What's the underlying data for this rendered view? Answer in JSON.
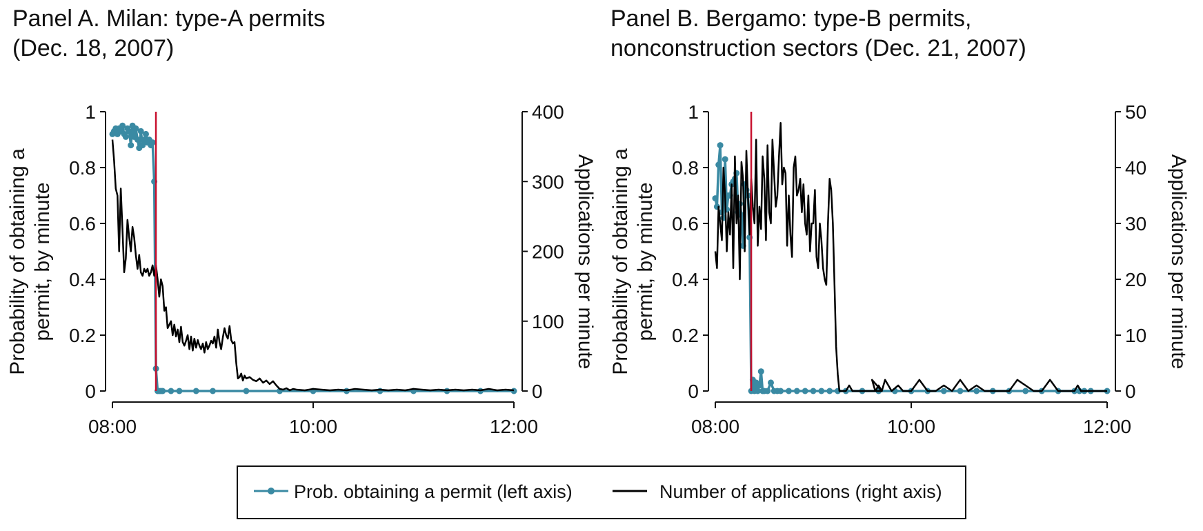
{
  "colors": {
    "probability": "#3a8aa3",
    "applications": "#000000",
    "event_line": "#c8102e"
  },
  "legend": {
    "prob_label": "Prob. obtaining a permit (left axis)",
    "apps_label": "Number of applications (right axis)"
  },
  "chart_data": [
    {
      "type": "line",
      "title_line1": "Panel A. Milan: type-A permits",
      "title_line2": "(Dec. 18, 2007)",
      "ylabel_left_line1": "Probability of obtaining a",
      "ylabel_left_line2": "permit, by minute",
      "ylabel_right": "Applications per minute",
      "x_ticks": [
        "08:00",
        "10:00",
        "12:00"
      ],
      "x_tick_minutes": [
        0,
        120,
        240
      ],
      "xlim_minutes": [
        0,
        240
      ],
      "y_left_ticks": [
        "0",
        "0.2",
        "0.4",
        "0.6",
        "0.8",
        "1"
      ],
      "y_left_tick_values": [
        0,
        0.2,
        0.4,
        0.6,
        0.8,
        1
      ],
      "ylim_left": [
        0,
        1
      ],
      "y_right_ticks": [
        "0",
        "100",
        "200",
        "300",
        "400"
      ],
      "y_right_tick_values": [
        0,
        100,
        200,
        300,
        400
      ],
      "ylim_right": [
        0,
        400
      ],
      "event_line_minute": 26,
      "series": [
        {
          "name": "Prob. obtaining a permit (left axis)",
          "axis": "left",
          "x": [
            0,
            1,
            2,
            3,
            4,
            5,
            6,
            7,
            8,
            9,
            10,
            11,
            12,
            13,
            14,
            15,
            16,
            17,
            18,
            19,
            20,
            21,
            22,
            23,
            24,
            25,
            26,
            27,
            28,
            29,
            30,
            35,
            40,
            50,
            60,
            80,
            100,
            120,
            140,
            160,
            180,
            200,
            220,
            240
          ],
          "y": [
            0.92,
            0.93,
            0.94,
            0.92,
            0.94,
            0.93,
            0.95,
            0.92,
            0.91,
            0.94,
            0.93,
            0.88,
            0.95,
            0.91,
            0.94,
            0.9,
            0.87,
            0.93,
            0.88,
            0.9,
            0.92,
            0.89,
            0.9,
            0.88,
            0.89,
            0.75,
            0.08,
            0.0,
            0.0,
            0.0,
            0.0,
            0.0,
            0.0,
            0.0,
            0.0,
            0.0,
            0.0,
            0.0,
            0.0,
            0.0,
            0.0,
            0.0,
            0.0,
            0.0
          ]
        },
        {
          "name": "Number of applications (right axis)",
          "axis": "right",
          "x": [
            0,
            1,
            2,
            3,
            4,
            5,
            6,
            7,
            8,
            9,
            10,
            11,
            12,
            13,
            14,
            15,
            16,
            17,
            18,
            19,
            20,
            21,
            22,
            23,
            24,
            25,
            26,
            27,
            28,
            29,
            30,
            31,
            32,
            33,
            34,
            35,
            36,
            37,
            38,
            39,
            40,
            41,
            42,
            43,
            44,
            45,
            46,
            47,
            48,
            49,
            50,
            51,
            52,
            53,
            54,
            55,
            56,
            57,
            58,
            59,
            60,
            61,
            62,
            63,
            64,
            65,
            66,
            67,
            68,
            69,
            70,
            71,
            72,
            73,
            74,
            75,
            76,
            77,
            78,
            79,
            80,
            82,
            84,
            86,
            88,
            90,
            92,
            94,
            96,
            98,
            100,
            102,
            104,
            106,
            108,
            110,
            115,
            120,
            125,
            130,
            135,
            140,
            145,
            150,
            155,
            160,
            165,
            170,
            175,
            180,
            185,
            190,
            195,
            200,
            205,
            210,
            215,
            220,
            225,
            230,
            235,
            240
          ],
          "y": [
            360,
            330,
            290,
            280,
            200,
            290,
            230,
            170,
            190,
            245,
            220,
            200,
            235,
            220,
            195,
            175,
            195,
            170,
            165,
            175,
            170,
            175,
            165,
            170,
            180,
            165,
            180,
            160,
            135,
            160,
            150,
            115,
            120,
            90,
            95,
            100,
            80,
            95,
            78,
            88,
            70,
            92,
            70,
            65,
            72,
            80,
            60,
            78,
            58,
            75,
            62,
            73,
            65,
            60,
            68,
            55,
            70,
            60,
            65,
            72,
            68,
            78,
            62,
            88,
            70,
            60,
            77,
            90,
            80,
            75,
            93,
            73,
            68,
            70,
            40,
            18,
            20,
            25,
            15,
            22,
            18,
            20,
            16,
            14,
            18,
            12,
            15,
            10,
            14,
            8,
            3,
            2,
            4,
            1,
            3,
            2,
            1,
            3,
            2,
            1,
            2,
            1,
            3,
            2,
            1,
            2,
            1,
            2,
            1,
            3,
            2,
            1,
            2,
            1,
            2,
            1,
            2,
            1,
            3,
            1,
            2,
            1
          ]
        }
      ]
    },
    {
      "type": "line",
      "title_line1": "Panel B. Bergamo: type-B permits,",
      "title_line2": "nonconstruction sectors (Dec. 21, 2007)",
      "ylabel_left_line1": "Probability of obtaining a",
      "ylabel_left_line2": "permit, by minute",
      "ylabel_right": "Applications per minute",
      "x_ticks": [
        "08:00",
        "10:00",
        "12:00"
      ],
      "x_tick_minutes": [
        0,
        120,
        240
      ],
      "xlim_minutes": [
        0,
        240
      ],
      "y_left_ticks": [
        "0",
        "0.2",
        "0.4",
        "0.6",
        "0.8",
        "1"
      ],
      "y_left_tick_values": [
        0,
        0.2,
        0.4,
        0.6,
        0.8,
        1
      ],
      "ylim_left": [
        0,
        1
      ],
      "y_right_ticks": [
        "0",
        "10",
        "20",
        "30",
        "40",
        "50"
      ],
      "y_right_tick_values": [
        0,
        10,
        20,
        30,
        40,
        50
      ],
      "ylim_right": [
        0,
        50
      ],
      "event_line_minute": 22,
      "series": [
        {
          "name": "Prob. obtaining a permit (left axis)",
          "axis": "left",
          "x": [
            0,
            1,
            2,
            3,
            4,
            5,
            6,
            7,
            8,
            9,
            10,
            11,
            12,
            13,
            14,
            15,
            16,
            17,
            18,
            19,
            20,
            21,
            22,
            23,
            24,
            25,
            26,
            27,
            28,
            29,
            30,
            32,
            34,
            36,
            38,
            40,
            45,
            50,
            55,
            60,
            65,
            70,
            75,
            80,
            90,
            100,
            110,
            120,
            130,
            140,
            150,
            160,
            170,
            180,
            190,
            200,
            210,
            220,
            223,
            226,
            230,
            240
          ],
          "y": [
            0.69,
            0.66,
            0.81,
            0.88,
            0.64,
            0.62,
            0.83,
            0.65,
            0.7,
            0.7,
            0.74,
            0.75,
            0.76,
            0.78,
            0.64,
            0.67,
            0.63,
            0.52,
            0.74,
            0.72,
            0.7,
            0.55,
            0.0,
            0.04,
            0.0,
            0.03,
            0.0,
            0.02,
            0.07,
            0.0,
            0.0,
            0.0,
            0.03,
            0.0,
            0.0,
            0.0,
            0.0,
            0.0,
            0.0,
            0.0,
            0.0,
            0.0,
            0.0,
            0.0,
            0.0,
            0.0,
            0.0,
            0.0,
            0.0,
            0.0,
            0.0,
            0.0,
            0.0,
            0.0,
            0.0,
            0.0,
            0.0,
            0.0,
            0.0,
            0.0,
            0.0,
            0.0
          ]
        },
        {
          "name": "Number of applications (right axis)",
          "axis": "right",
          "x": [
            0,
            1,
            2,
            3,
            4,
            5,
            6,
            7,
            8,
            9,
            10,
            11,
            12,
            13,
            14,
            15,
            16,
            17,
            18,
            19,
            20,
            21,
            22,
            23,
            24,
            25,
            26,
            27,
            28,
            29,
            30,
            31,
            32,
            33,
            34,
            35,
            36,
            37,
            38,
            39,
            40,
            41,
            42,
            43,
            44,
            45,
            46,
            47,
            48,
            49,
            50,
            51,
            52,
            53,
            54,
            55,
            56,
            57,
            58,
            59,
            60,
            61,
            62,
            63,
            64,
            65,
            66,
            67,
            68,
            69,
            70,
            71,
            72,
            73,
            74,
            75,
            76,
            78,
            80,
            82,
            84,
            86,
            88,
            90,
            92,
            94,
            96,
            98,
            100,
            102,
            96,
            98,
            100,
            102,
            104,
            108,
            112,
            115,
            120,
            125,
            130,
            135,
            140,
            145,
            150,
            155,
            160,
            165,
            170,
            175,
            180,
            185,
            190,
            195,
            200,
            205,
            210,
            215,
            220,
            222,
            224,
            226,
            230,
            240
          ],
          "y": [
            25,
            22,
            33,
            30,
            27,
            40,
            35,
            25,
            32,
            28,
            37,
            22,
            42,
            30,
            35,
            20,
            41,
            38,
            25,
            43,
            35,
            28,
            38,
            33,
            30,
            45,
            26,
            33,
            29,
            42,
            38,
            27,
            44,
            32,
            30,
            45,
            39,
            33,
            35,
            42,
            48,
            37,
            40,
            39,
            26,
            35,
            28,
            24,
            40,
            42,
            35,
            36,
            38,
            32,
            37,
            30,
            28,
            35,
            25,
            30,
            30,
            36,
            24,
            22,
            30,
            27,
            22,
            20,
            19,
            30,
            38,
            36,
            30,
            19,
            8,
            3,
            0,
            0,
            0,
            1,
            0,
            0,
            0,
            0,
            0,
            0,
            0,
            0,
            0,
            0,
            2,
            0,
            1,
            0,
            2,
            0,
            1,
            0,
            0,
            2,
            0,
            0,
            1,
            0,
            2,
            0,
            1,
            0,
            0,
            0,
            0,
            2,
            1,
            0,
            0,
            2,
            0,
            0,
            0,
            1,
            0,
            0,
            0,
            0
          ]
        }
      ]
    }
  ]
}
